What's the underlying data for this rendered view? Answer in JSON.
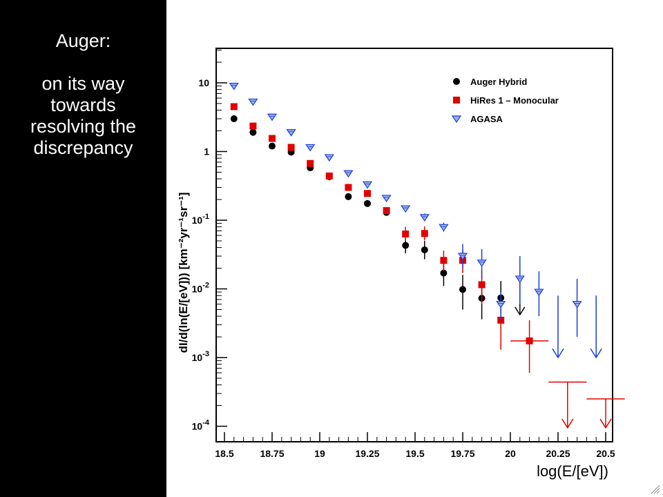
{
  "slide": {
    "heading": "Auger:",
    "lines": [
      "on its way",
      "towards",
      "resolving the",
      "discrepancy"
    ]
  },
  "colors": {
    "auger": "#000000",
    "hires": "#e00000",
    "agasa": "#1a3fd6",
    "panel": "#000000",
    "text": "#ffffff"
  },
  "icons": {
    "resize": "resize-grip-icon"
  },
  "chart_data": {
    "type": "scatter",
    "title": "",
    "xlabel": "log(E/[eV])",
    "ylabel": "dI/d(ln(E/[eV])) [km⁻²yr⁻¹sr⁻¹]",
    "xlim": [
      18.5,
      20.6
    ],
    "ylog": true,
    "ylim": [
      6e-05,
      30
    ],
    "xticks": [
      18.5,
      18.75,
      19,
      19.25,
      19.5,
      19.75,
      20,
      20.25,
      20.5
    ],
    "xtick_labels": [
      "18.5",
      "18.75",
      "19",
      "19.25",
      "19.5",
      "19.75",
      "20",
      "20.25",
      "20.5"
    ],
    "yticks": [
      10,
      1,
      0.1,
      0.01,
      0.001,
      0.0001
    ],
    "ytick_labels": [
      "10",
      "1",
      "10-1",
      "10-2",
      "10-3",
      "10-4"
    ],
    "grid": false,
    "legend_position": "top-right",
    "series": [
      {
        "name": "Auger Hybrid",
        "marker": "circle",
        "color": "#000000",
        "points": [
          {
            "x": 18.55,
            "y": 3.0
          },
          {
            "x": 18.65,
            "y": 1.9
          },
          {
            "x": 18.75,
            "y": 1.2
          },
          {
            "x": 18.85,
            "y": 0.98
          },
          {
            "x": 18.95,
            "y": 0.58
          },
          {
            "x": 19.05,
            "y": 0.43
          },
          {
            "x": 19.15,
            "y": 0.22
          },
          {
            "x": 19.25,
            "y": 0.175
          },
          {
            "x": 19.35,
            "y": 0.13
          },
          {
            "x": 19.45,
            "y": 0.043,
            "yerr": [
              0.033,
              0.056
            ]
          },
          {
            "x": 19.55,
            "y": 0.037,
            "yerr": [
              0.027,
              0.05
            ]
          },
          {
            "x": 19.65,
            "y": 0.017,
            "yerr": [
              0.011,
              0.025
            ]
          },
          {
            "x": 19.75,
            "y": 0.0098,
            "yerr": [
              0.005,
              0.016
            ]
          },
          {
            "x": 19.85,
            "y": 0.0073,
            "yerr": [
              0.0036,
              0.013
            ]
          },
          {
            "x": 19.95,
            "y": 0.0074,
            "yerr": [
              0.0045,
              0.013
            ]
          }
        ],
        "upper_limits": [
          {
            "x": 20.05,
            "y": 0.0042
          }
        ]
      },
      {
        "name": "HiRes 1 – Monocular",
        "marker": "square",
        "color": "#e00000",
        "points": [
          {
            "x": 18.55,
            "y": 4.5
          },
          {
            "x": 18.65,
            "y": 2.35
          },
          {
            "x": 18.75,
            "y": 1.55
          },
          {
            "x": 18.85,
            "y": 1.15
          },
          {
            "x": 18.95,
            "y": 0.67
          },
          {
            "x": 19.05,
            "y": 0.44
          },
          {
            "x": 19.15,
            "y": 0.3
          },
          {
            "x": 19.25,
            "y": 0.245
          },
          {
            "x": 19.35,
            "y": 0.138
          },
          {
            "x": 19.45,
            "y": 0.063,
            "yerr": [
              0.05,
              0.08
            ]
          },
          {
            "x": 19.55,
            "y": 0.064,
            "yerr": [
              0.051,
              0.081
            ]
          },
          {
            "x": 19.65,
            "y": 0.026,
            "yerr": [
              0.018,
              0.036
            ]
          },
          {
            "x": 19.75,
            "y": 0.026,
            "yerr": [
              0.017,
              0.037
            ]
          },
          {
            "x": 19.85,
            "y": 0.0115,
            "yerr": [
              0.006,
              0.019
            ]
          },
          {
            "x": 19.95,
            "y": 0.0035,
            "yerr": [
              0.0013,
              0.0065
            ]
          },
          {
            "x": 20.1,
            "y": 0.00175,
            "yerr": [
              0.0006,
              0.0035
            ],
            "xerr": [
              20.0,
              20.2
            ]
          }
        ],
        "upper_limits": [
          {
            "x": 20.3,
            "y": 0.00044,
            "xerr": [
              20.2,
              20.4
            ],
            "arrow_to": 9.5e-05
          },
          {
            "x": 20.5,
            "y": 0.00025,
            "xerr": [
              20.4,
              20.6
            ],
            "arrow_to": 9.5e-05
          }
        ]
      },
      {
        "name": "AGASA",
        "marker": "triangle-down",
        "color": "#1a3fd6",
        "points": [
          {
            "x": 18.55,
            "y": 9.0
          },
          {
            "x": 18.65,
            "y": 5.3
          },
          {
            "x": 18.75,
            "y": 3.2
          },
          {
            "x": 18.85,
            "y": 1.9
          },
          {
            "x": 18.95,
            "y": 1.15
          },
          {
            "x": 19.05,
            "y": 0.82
          },
          {
            "x": 19.15,
            "y": 0.48
          },
          {
            "x": 19.25,
            "y": 0.33
          },
          {
            "x": 19.35,
            "y": 0.21
          },
          {
            "x": 19.45,
            "y": 0.148
          },
          {
            "x": 19.55,
            "y": 0.11,
            "yerr": [
              0.098,
              0.125
            ]
          },
          {
            "x": 19.65,
            "y": 0.079,
            "yerr": [
              0.068,
              0.092
            ]
          },
          {
            "x": 19.75,
            "y": 0.03,
            "yerr": [
              0.02,
              0.045
            ]
          },
          {
            "x": 19.85,
            "y": 0.024,
            "yerr": [
              0.014,
              0.038
            ]
          },
          {
            "x": 19.95,
            "y": 0.006,
            "yerr": [
              0.0035,
              0.009
            ]
          },
          {
            "x": 20.05,
            "y": 0.014,
            "yerr": [
              0.006,
              0.03
            ]
          },
          {
            "x": 20.15,
            "y": 0.009,
            "yerr": [
              0.004,
              0.018
            ]
          },
          {
            "x": 20.35,
            "y": 0.006,
            "yerr": [
              0.002,
              0.014
            ]
          }
        ],
        "upper_limits": [
          {
            "x": 20.25,
            "y": 0.008,
            "arrow_to": 0.001
          },
          {
            "x": 20.45,
            "y": 0.008,
            "arrow_to": 0.001
          }
        ]
      }
    ]
  }
}
